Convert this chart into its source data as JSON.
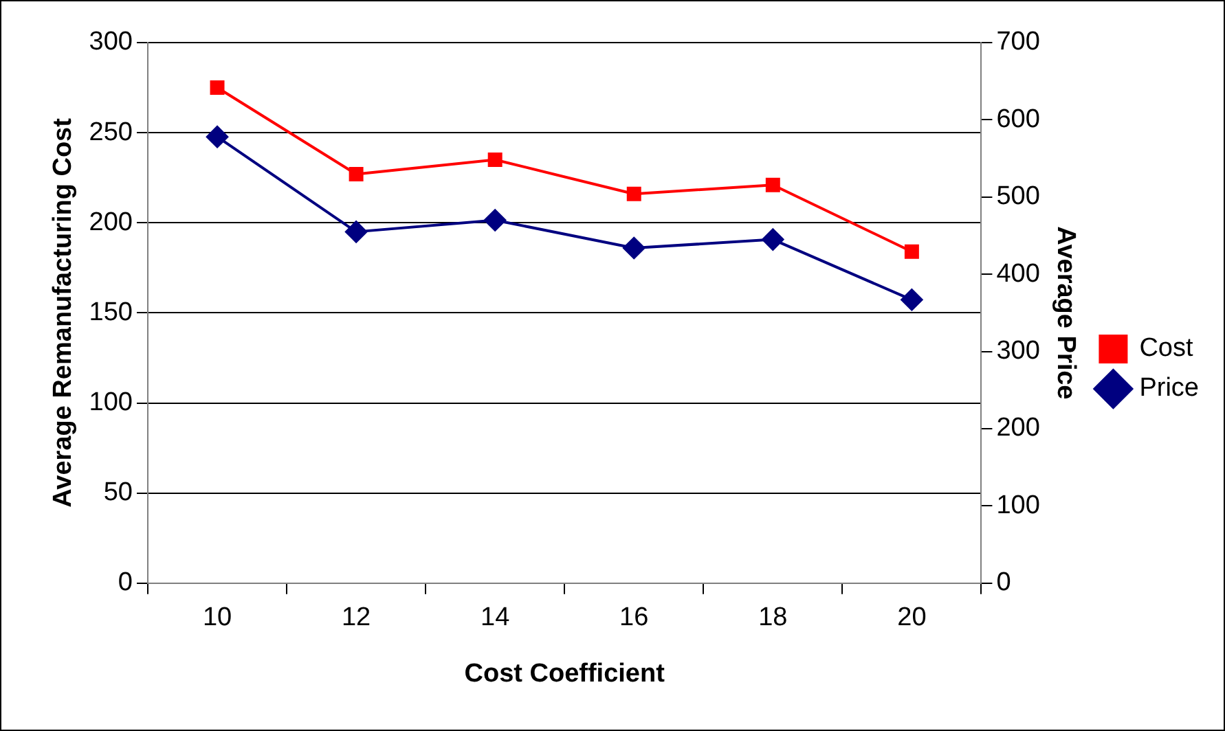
{
  "chart_data": {
    "type": "line",
    "xlabel": "Cost Coefficient",
    "ylabel": "Average Remanufacturing Cost",
    "y2label": "Average Price",
    "categories": [
      "10",
      "12",
      "14",
      "16",
      "18",
      "20"
    ],
    "series": [
      {
        "name": "Cost",
        "color": "#ff0000",
        "marker": "square",
        "values": [
          275,
          227,
          235,
          216,
          221,
          184
        ]
      },
      {
        "name": "Price",
        "color": "#000080",
        "marker": "diamond",
        "axis": "y2",
        "values": [
          578,
          455,
          470,
          434,
          445,
          367
        ]
      }
    ],
    "ylim": [
      0,
      300
    ],
    "yticks": [
      0,
      50,
      100,
      150,
      200,
      250,
      300
    ],
    "y2lim": [
      0,
      700
    ],
    "y2ticks": [
      0,
      100,
      200,
      300,
      400,
      500,
      600,
      700
    ],
    "grid": "y",
    "legend": "right",
    "line_style": "solid"
  }
}
